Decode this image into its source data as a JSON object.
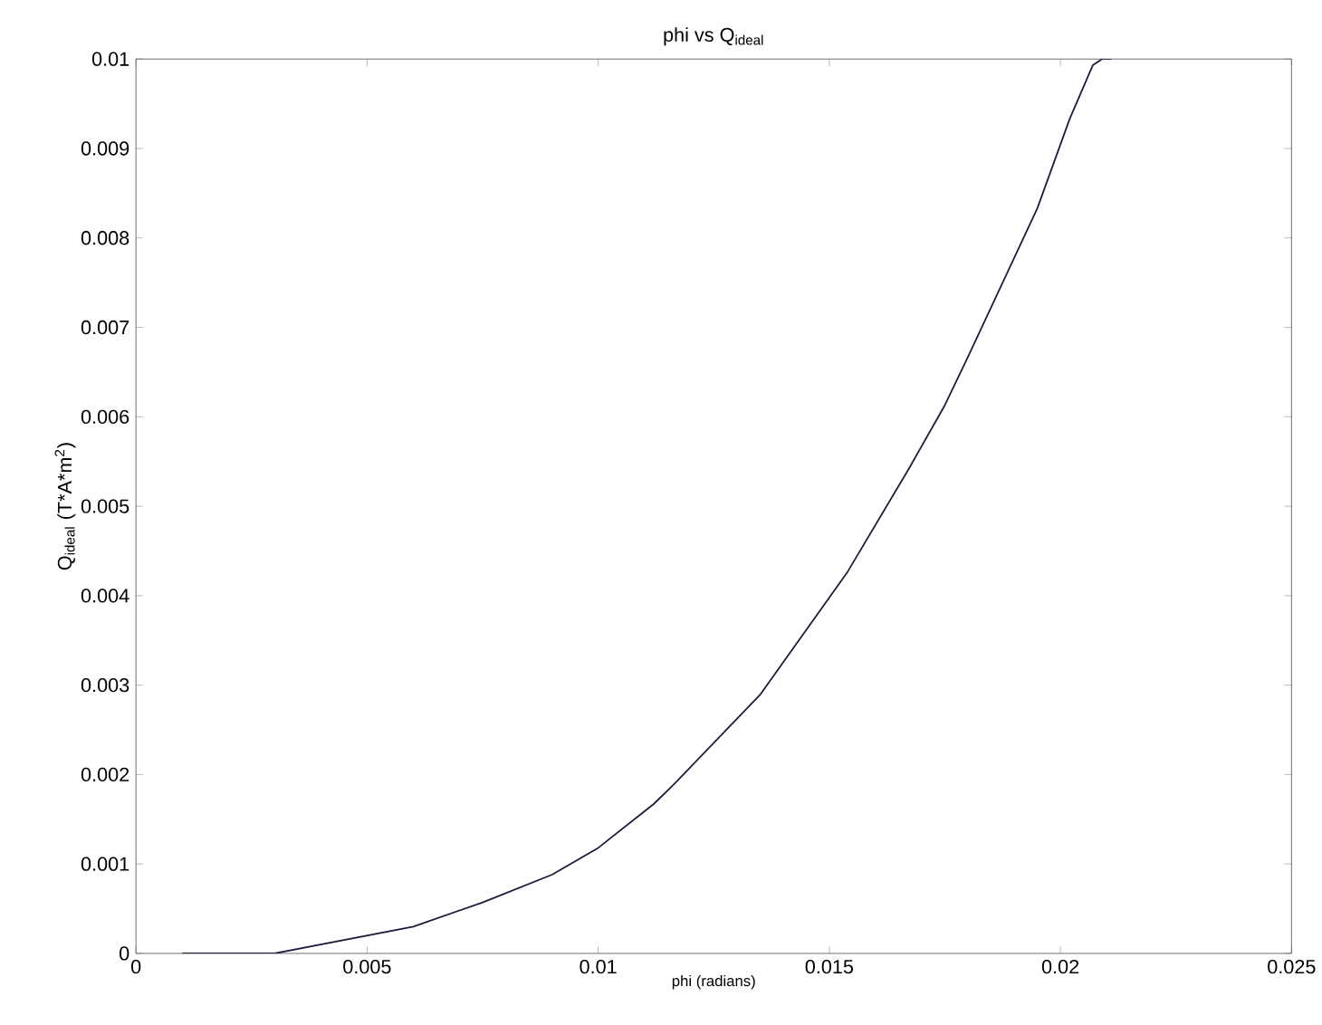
{
  "chart_data": {
    "type": "line",
    "title": "phi vs Q$_{ideal}$",
    "xlabel": "phi (radians)",
    "ylabel": "Q$_{ideal}$ (T*A*m$^{2}$)",
    "xlim": [
      0,
      0.025
    ],
    "ylim": [
      0,
      0.01
    ],
    "xticks": [
      0,
      0.005,
      0.01,
      0.015,
      0.02,
      0.025
    ],
    "yticks": [
      0,
      0.001,
      0.002,
      0.003,
      0.004,
      0.005,
      0.006,
      0.007,
      0.008,
      0.009,
      0.01
    ],
    "grid": false,
    "marker": "none",
    "line_style": "solid",
    "series": [
      {
        "color": "#1a1a3a",
        "x": [
          0.001,
          0.002,
          0.0025,
          0.003,
          0.004,
          0.005,
          0.006,
          0.0075,
          0.009,
          0.01,
          0.0112,
          0.0116,
          0.0135,
          0.0154,
          0.0167,
          0.0175,
          0.018,
          0.0195,
          0.0202,
          0.0207,
          0.0209,
          0.0211
        ],
        "values": [
          0,
          0,
          0,
          0,
          0.0001,
          0.0002,
          0.0003,
          0.00057,
          0.00088,
          0.00118,
          0.00167,
          0.00187,
          0.00289,
          0.00427,
          0.0054,
          0.00613,
          0.00667,
          0.00833,
          0.00933,
          0.00993,
          0.01,
          0.01
        ]
      }
    ]
  }
}
